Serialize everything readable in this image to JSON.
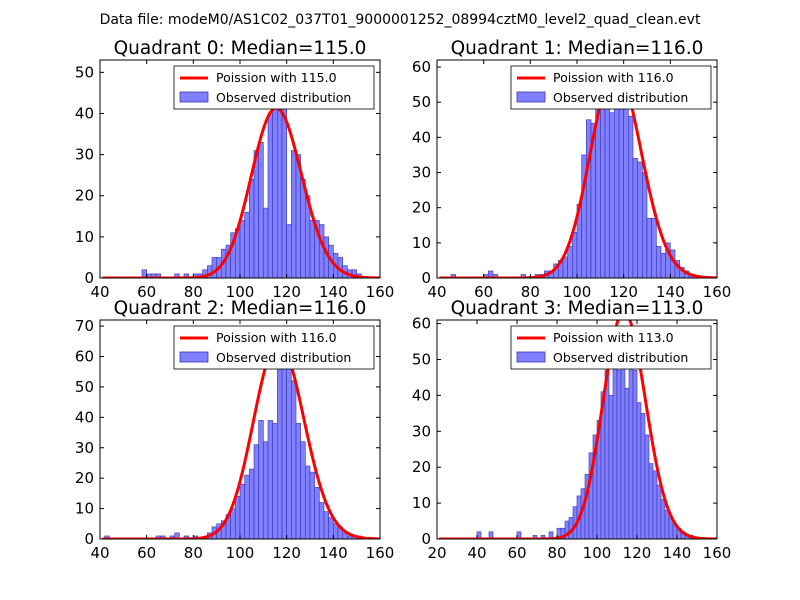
{
  "figure_title": "Data file: modeM0/AS1C02_037T01_9000001252_08994cztM0_level2_quad_clean.evt",
  "colors": {
    "bar_fill": "#8080ff",
    "bar_edge": "#3535b0",
    "curve": "#ff0000",
    "axes": "#000000",
    "background": "#ffffff"
  },
  "chart_data": [
    {
      "type": "bar",
      "title": "Quadrant 0: Median=115.0",
      "xlim": [
        40,
        160
      ],
      "ylim": [
        0,
        53
      ],
      "xticks": [
        40,
        60,
        80,
        100,
        120,
        140,
        160
      ],
      "yticks": [
        0,
        10,
        20,
        30,
        40,
        50
      ],
      "bin_width": 2,
      "bins": [
        [
          58,
          2
        ],
        [
          60,
          1
        ],
        [
          62,
          1
        ],
        [
          64,
          1
        ],
        [
          72,
          1
        ],
        [
          76,
          1
        ],
        [
          80,
          1
        ],
        [
          82,
          1
        ],
        [
          84,
          2
        ],
        [
          86,
          3
        ],
        [
          88,
          5
        ],
        [
          90,
          5
        ],
        [
          92,
          7
        ],
        [
          94,
          8
        ],
        [
          96,
          11
        ],
        [
          98,
          12
        ],
        [
          100,
          14
        ],
        [
          102,
          16
        ],
        [
          104,
          24
        ],
        [
          106,
          31
        ],
        [
          108,
          33
        ],
        [
          110,
          17
        ],
        [
          112,
          40
        ],
        [
          114,
          50
        ],
        [
          116,
          50
        ],
        [
          118,
          48
        ],
        [
          120,
          13
        ],
        [
          122,
          31
        ],
        [
          124,
          30
        ],
        [
          126,
          24
        ],
        [
          128,
          20
        ],
        [
          130,
          14
        ],
        [
          132,
          14
        ],
        [
          134,
          13
        ],
        [
          136,
          10
        ],
        [
          138,
          8
        ],
        [
          140,
          6
        ],
        [
          142,
          5
        ],
        [
          144,
          3
        ],
        [
          146,
          2
        ],
        [
          148,
          2
        ],
        [
          150,
          1
        ]
      ],
      "series": [
        {
          "name": "Poission with 115.0",
          "kind": "line",
          "mean": 115.0,
          "n": 556
        },
        {
          "name": "Observed distribution",
          "kind": "bar"
        }
      ]
    },
    {
      "type": "bar",
      "title": "Quadrant 1: Median=116.0",
      "xlim": [
        40,
        160
      ],
      "ylim": [
        0,
        62
      ],
      "xticks": [
        40,
        60,
        80,
        100,
        120,
        140,
        160
      ],
      "yticks": [
        0,
        10,
        20,
        30,
        40,
        50,
        60
      ],
      "bin_width": 2,
      "bins": [
        [
          46,
          1
        ],
        [
          60,
          1
        ],
        [
          62,
          2
        ],
        [
          64,
          1
        ],
        [
          76,
          1
        ],
        [
          82,
          1
        ],
        [
          84,
          1
        ],
        [
          86,
          2
        ],
        [
          88,
          2
        ],
        [
          90,
          4
        ],
        [
          92,
          5
        ],
        [
          94,
          6
        ],
        [
          96,
          9
        ],
        [
          98,
          13
        ],
        [
          100,
          21
        ],
        [
          102,
          35
        ],
        [
          104,
          45
        ],
        [
          106,
          44
        ],
        [
          108,
          50
        ],
        [
          110,
          54
        ],
        [
          112,
          56
        ],
        [
          114,
          47
        ],
        [
          116,
          60
        ],
        [
          118,
          56
        ],
        [
          120,
          55
        ],
        [
          122,
          46
        ],
        [
          124,
          34
        ],
        [
          126,
          33
        ],
        [
          128,
          30
        ],
        [
          130,
          17
        ],
        [
          132,
          17
        ],
        [
          134,
          9
        ],
        [
          136,
          7
        ],
        [
          138,
          10
        ],
        [
          140,
          8
        ],
        [
          142,
          5
        ],
        [
          144,
          3
        ],
        [
          146,
          2
        ],
        [
          148,
          1
        ]
      ],
      "series": [
        {
          "name": "Poission with 116.0",
          "kind": "line",
          "mean": 116.0,
          "n": 806
        },
        {
          "name": "Observed distribution",
          "kind": "bar"
        }
      ]
    },
    {
      "type": "bar",
      "title": "Quadrant 2: Median=116.0",
      "xlim": [
        40,
        160
      ],
      "ylim": [
        0,
        72
      ],
      "xticks": [
        40,
        60,
        80,
        100,
        120,
        140,
        160
      ],
      "yticks": [
        0,
        10,
        20,
        30,
        40,
        50,
        60,
        70
      ],
      "bin_width": 2,
      "bins": [
        [
          42,
          1
        ],
        [
          64,
          1
        ],
        [
          66,
          1
        ],
        [
          70,
          1
        ],
        [
          72,
          2
        ],
        [
          76,
          1
        ],
        [
          80,
          1
        ],
        [
          86,
          2
        ],
        [
          88,
          4
        ],
        [
          90,
          5
        ],
        [
          92,
          6
        ],
        [
          94,
          8
        ],
        [
          96,
          10
        ],
        [
          98,
          14
        ],
        [
          100,
          18
        ],
        [
          102,
          21
        ],
        [
          104,
          23
        ],
        [
          106,
          31
        ],
        [
          108,
          39
        ],
        [
          110,
          32
        ],
        [
          112,
          39
        ],
        [
          114,
          38
        ],
        [
          116,
          69
        ],
        [
          118,
          62
        ],
        [
          120,
          64
        ],
        [
          122,
          52
        ],
        [
          124,
          38
        ],
        [
          126,
          32
        ],
        [
          128,
          24
        ],
        [
          130,
          22
        ],
        [
          132,
          17
        ],
        [
          134,
          12
        ],
        [
          136,
          9
        ],
        [
          138,
          7
        ],
        [
          140,
          5
        ],
        [
          142,
          4
        ],
        [
          144,
          2
        ],
        [
          146,
          1
        ],
        [
          148,
          1
        ],
        [
          150,
          1
        ]
      ],
      "series": [
        {
          "name": "Poission with 116.0",
          "kind": "line",
          "mean": 116.0,
          "n": 874
        },
        {
          "name": "Observed distribution",
          "kind": "bar"
        }
      ]
    },
    {
      "type": "bar",
      "title": "Quadrant 3: Median=113.0",
      "xlim": [
        20,
        160
      ],
      "ylim": [
        0,
        61
      ],
      "xticks": [
        20,
        40,
        60,
        80,
        100,
        120,
        140,
        160
      ],
      "yticks": [
        0,
        10,
        20,
        30,
        40,
        50,
        60
      ],
      "bin_width": 2,
      "bins": [
        [
          40,
          2
        ],
        [
          46,
          2
        ],
        [
          60,
          2
        ],
        [
          68,
          1
        ],
        [
          72,
          1
        ],
        [
          76,
          2
        ],
        [
          80,
          3
        ],
        [
          82,
          3
        ],
        [
          84,
          5
        ],
        [
          86,
          6
        ],
        [
          88,
          9
        ],
        [
          90,
          12
        ],
        [
          92,
          14
        ],
        [
          94,
          18
        ],
        [
          96,
          24
        ],
        [
          98,
          29
        ],
        [
          100,
          33
        ],
        [
          102,
          41
        ],
        [
          104,
          47
        ],
        [
          106,
          40
        ],
        [
          108,
          48
        ],
        [
          110,
          47
        ],
        [
          112,
          54
        ],
        [
          114,
          42
        ],
        [
          116,
          50
        ],
        [
          118,
          47
        ],
        [
          120,
          38
        ],
        [
          122,
          35
        ],
        [
          124,
          29
        ],
        [
          126,
          21
        ],
        [
          128,
          19
        ],
        [
          130,
          15
        ],
        [
          132,
          11
        ],
        [
          134,
          8
        ],
        [
          136,
          6
        ],
        [
          138,
          4
        ],
        [
          140,
          3
        ],
        [
          142,
          2
        ],
        [
          144,
          1
        ],
        [
          146,
          1
        ]
      ],
      "series": [
        {
          "name": "Poission with 113.0",
          "kind": "line",
          "mean": 113.0,
          "n": 844
        },
        {
          "name": "Observed distribution",
          "kind": "bar"
        }
      ]
    }
  ]
}
